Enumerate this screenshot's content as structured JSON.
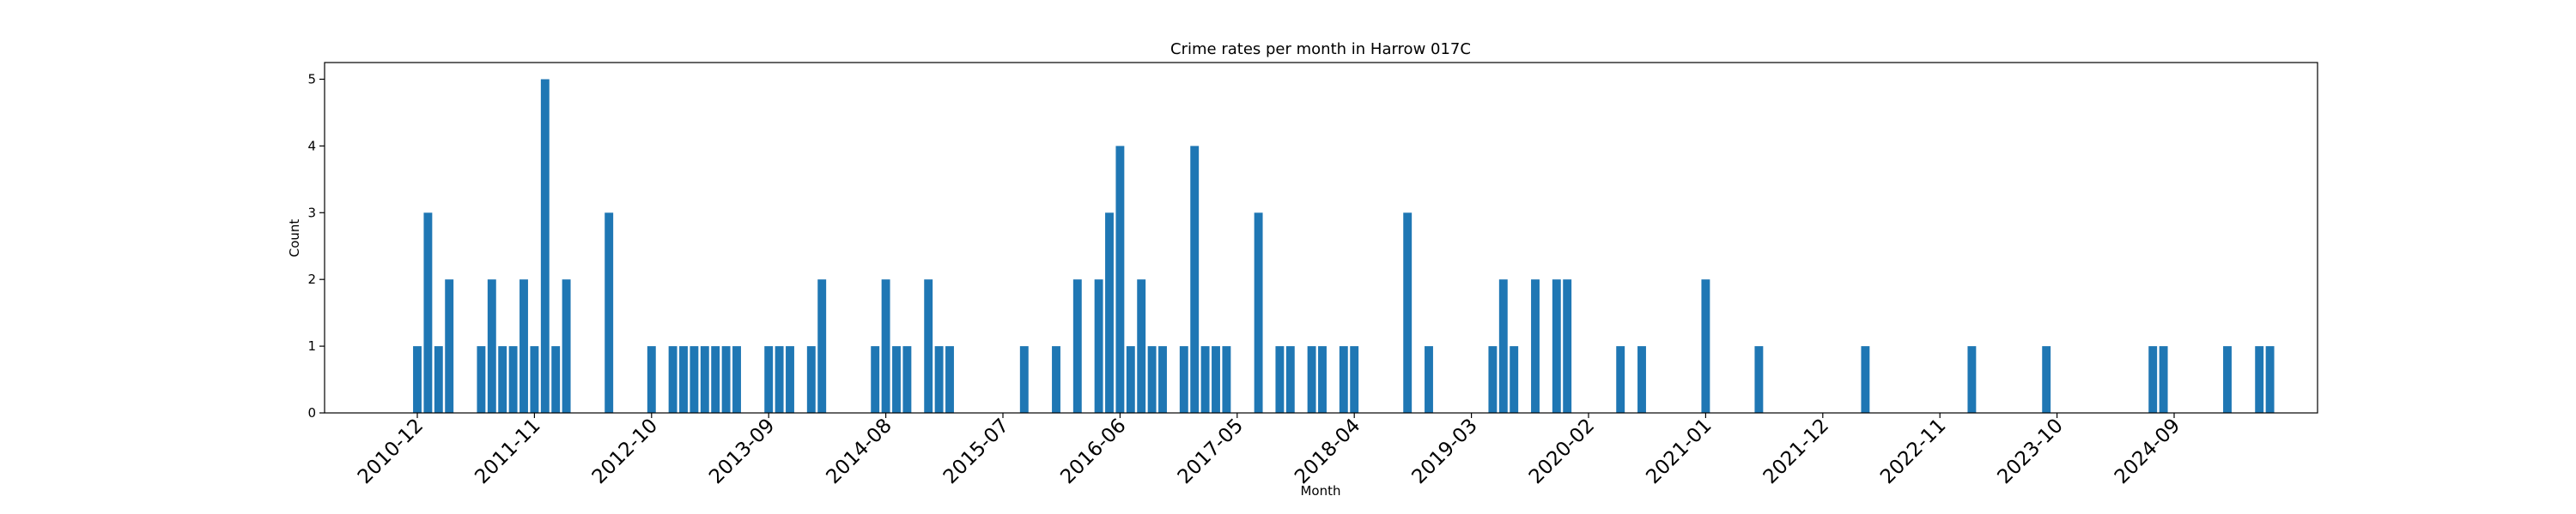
{
  "chart_data": {
    "type": "bar",
    "title": "Crime rates per month in Harrow 017C",
    "xlabel": "Month",
    "ylabel": "Count",
    "ylim": [
      0,
      5.25
    ],
    "yticks": [
      0,
      1,
      2,
      3,
      4,
      5
    ],
    "grid": false,
    "legend": "none",
    "bar_color": "#1f77b4",
    "xticks": [
      "2010-12",
      "2011-11",
      "2012-10",
      "2013-09",
      "2014-08",
      "2015-07",
      "2016-06",
      "2017-05",
      "2018-04",
      "2019-03",
      "2020-02",
      "2021-01",
      "2021-12",
      "2022-11",
      "2023-10",
      "2024-09"
    ],
    "months": [
      "2010-12",
      "2011-01",
      "2011-02",
      "2011-03",
      "2011-06",
      "2011-07",
      "2011-08",
      "2011-09",
      "2011-10",
      "2011-11",
      "2011-12",
      "2012-01",
      "2012-02",
      "2012-06",
      "2012-10",
      "2012-12",
      "2013-01",
      "2013-02",
      "2013-03",
      "2013-04",
      "2013-05",
      "2013-06",
      "2013-09",
      "2013-10",
      "2013-11",
      "2014-01",
      "2014-02",
      "2014-07",
      "2014-08",
      "2014-09",
      "2014-10",
      "2014-12",
      "2015-01",
      "2015-02",
      "2015-09",
      "2015-12",
      "2016-02",
      "2016-04",
      "2016-05",
      "2016-06",
      "2016-07",
      "2016-08",
      "2016-09",
      "2016-10",
      "2016-12",
      "2017-01",
      "2017-02",
      "2017-03",
      "2017-04",
      "2017-07",
      "2017-09",
      "2017-10",
      "2017-12",
      "2018-01",
      "2018-03",
      "2018-04",
      "2018-09",
      "2018-11",
      "2019-05",
      "2019-06",
      "2019-07",
      "2019-09",
      "2019-11",
      "2019-12",
      "2020-05",
      "2020-07",
      "2021-01",
      "2021-06",
      "2022-04",
      "2023-02",
      "2023-09",
      "2024-07",
      "2024-08",
      "2025-02",
      "2025-05",
      "2025-06"
    ],
    "values": [
      1,
      3,
      1,
      2,
      1,
      2,
      1,
      1,
      2,
      1,
      5,
      1,
      2,
      3,
      1,
      1,
      1,
      1,
      1,
      1,
      1,
      1,
      1,
      1,
      1,
      1,
      2,
      1,
      2,
      1,
      1,
      2,
      1,
      1,
      1,
      1,
      2,
      2,
      3,
      4,
      1,
      2,
      1,
      1,
      1,
      4,
      1,
      1,
      1,
      3,
      1,
      1,
      1,
      1,
      1,
      1,
      3,
      1,
      1,
      2,
      1,
      2,
      2,
      2,
      1,
      1,
      2,
      1,
      1,
      1,
      1,
      1,
      1,
      1,
      1,
      1
    ]
  }
}
